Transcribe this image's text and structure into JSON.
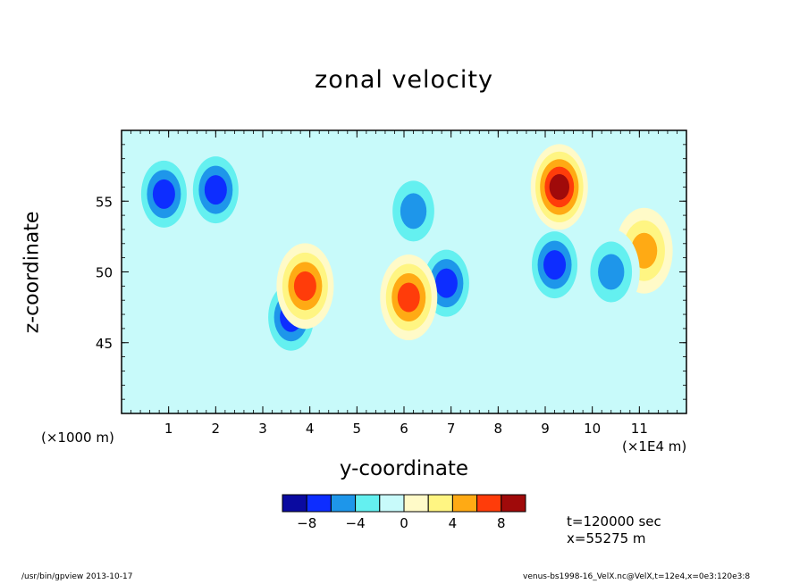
{
  "chart_data": {
    "type": "heatmap",
    "title": "zonal velocity",
    "xlabel": "y-coordinate",
    "ylabel": "z-coordinate",
    "x_multiplier_label": "(×1000 m)",
    "x_unit_label": "(×1E4 m)",
    "xlim": [
      0,
      12
    ],
    "ylim": [
      40,
      60
    ],
    "x_ticks": [
      1,
      2,
      3,
      4,
      5,
      6,
      7,
      8,
      9,
      10,
      11
    ],
    "y_ticks": [
      45,
      50,
      55
    ],
    "colorbar": {
      "levels": [
        -10,
        -8,
        -6,
        -4,
        -2,
        0,
        2,
        4,
        6,
        8,
        10
      ],
      "tick_labels": [
        -8,
        -4,
        0,
        4,
        8
      ],
      "colors": [
        "#0a0aa0",
        "#0d2dff",
        "#1e96ea",
        "#64f0f0",
        "#c8fafa",
        "#fffac8",
        "#fff582",
        "#ffaa14",
        "#ff3c0a",
        "#a00a0a"
      ]
    },
    "features": [
      {
        "y": 0.9,
        "z": 55.5,
        "value": -6
      },
      {
        "y": 2.0,
        "z": 55.8,
        "value": -5
      },
      {
        "y": 3.6,
        "z": 46.8,
        "value": -6
      },
      {
        "y": 6.2,
        "z": 54.3,
        "value": -3
      },
      {
        "y": 6.9,
        "z": 49.2,
        "value": -5
      },
      {
        "y": 9.2,
        "z": 50.5,
        "value": -5
      },
      {
        "y": 9.3,
        "z": 56.0,
        "value": 7
      },
      {
        "y": 3.9,
        "z": 49.0,
        "value": 5
      },
      {
        "y": 6.1,
        "z": 48.2,
        "value": 5
      },
      {
        "y": 11.1,
        "z": 51.5,
        "value": 4
      },
      {
        "y": 10.4,
        "z": 50.0,
        "value": -3
      }
    ]
  },
  "annotations": {
    "time": "t=120000 sec",
    "position": "x=55275 m"
  },
  "footer": {
    "left": "/usr/bin/gpview   2013-10-17",
    "right": "venus-bs1998-16_VelX.nc@VelX,t=12e4,x=0e3:120e3:8"
  }
}
